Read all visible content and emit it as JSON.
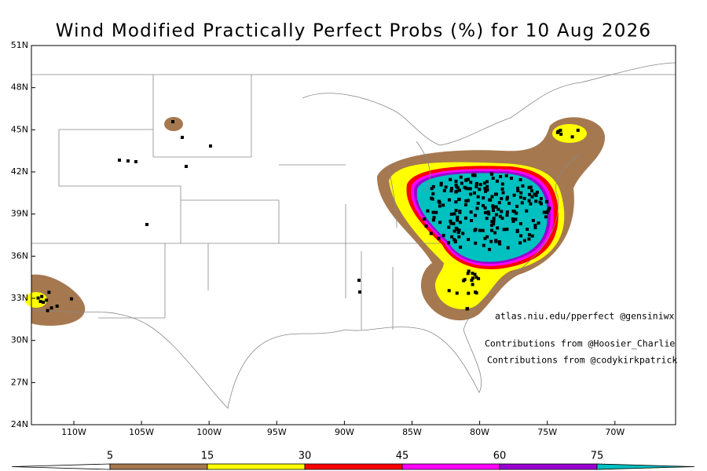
{
  "title": "Wind Modified Practically Perfect Probs (%) for 10 Aug 2026",
  "map": {
    "lat_labels": [
      "51N",
      "48N",
      "45N",
      "42N",
      "39N",
      "36N",
      "33N",
      "30N",
      "27N",
      "24N"
    ],
    "lon_labels": [
      "110W",
      "105W",
      "100W",
      "95W",
      "90W",
      "85W",
      "80W",
      "75W",
      "70W"
    ]
  },
  "credits": [
    "atlas.niu.edu/pperfect @gensiniwx",
    "Contributions from @Hoosier_Charlie",
    "Contributions from @codykirkpatrick"
  ],
  "colorbar": {
    "labels": [
      "5",
      "15",
      "30",
      "45",
      "60",
      "75"
    ],
    "colors": [
      "#ffffff",
      "#a57850",
      "#ffff00",
      "#ff0000",
      "#ff00ff",
      "#9a00d0",
      "#00c0c0"
    ]
  }
}
